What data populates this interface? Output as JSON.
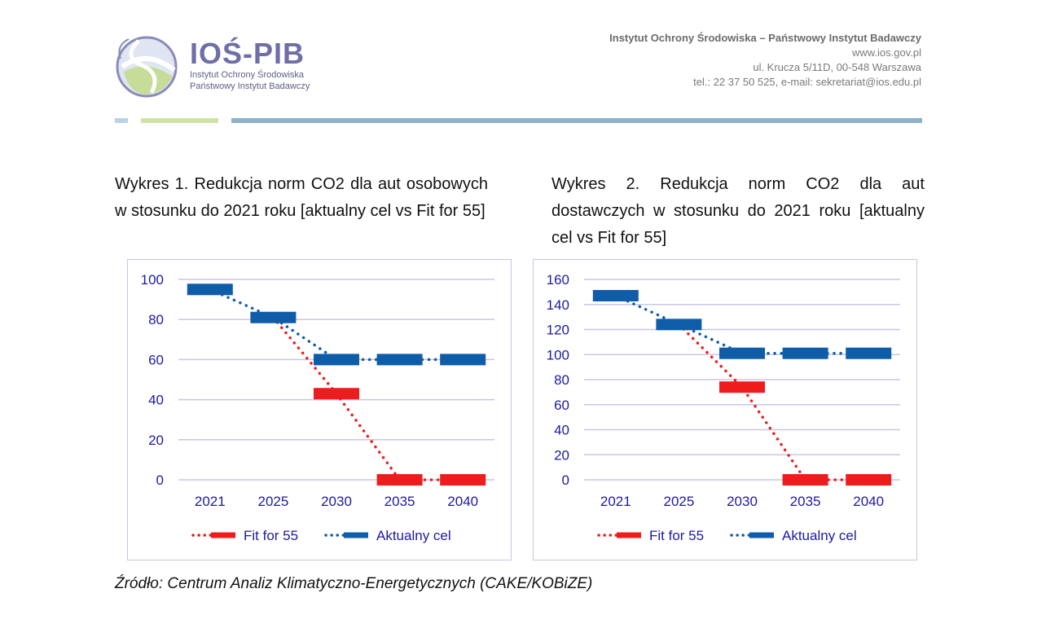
{
  "header": {
    "brand_name": "IOŚ-PIB",
    "brand_sub_1": "Instytut Ochrony Środowiska",
    "brand_sub_2": "Państwowy Instytut Badawczy",
    "contact_org": "Instytut Ochrony Środowiska – Państwowy Instytut Badawczy",
    "contact_web": "www.ios.gov.pl",
    "contact_addr": "ul. Krucza 5/11D, 00-548 Warszawa",
    "contact_tel": "tel.: 22 37 50 525, e-mail: sekretariat@ios.edu.pl"
  },
  "captions": {
    "chart1": "Wykres 1. Redukcja norm CO2 dla aut osobowych w stosunku do 2021 roku [aktualny cel vs Fit for 55]",
    "chart2": "Wykres 2. Redukcja norm CO2 dla aut dostawczych w stosunku do 2021 roku [aktualny cel vs Fit for 55]"
  },
  "source": "Źródło: Centrum Analiz Klimatyczno-Energetycznych (CAKE/KOBiZE)",
  "colors": {
    "fit55": "#ee1c1c",
    "aktualny": "#0f5ca8",
    "tick": "#1d1aa4",
    "grid": "#c9c6e6",
    "brand": "#6f6ea6"
  },
  "chart_data": [
    {
      "type": "line",
      "categories": [
        "2021",
        "2025",
        "2030",
        "2035",
        "2040"
      ],
      "ylim": [
        0,
        100
      ],
      "yticks": [
        0,
        20,
        40,
        60,
        80,
        100
      ],
      "series": [
        {
          "name": "Fit for 55",
          "values": [
            null,
            81,
            43,
            0,
            0
          ]
        },
        {
          "name": "Aktualny cel",
          "values": [
            95,
            81,
            60,
            60,
            60
          ]
        }
      ],
      "legend": "bottom",
      "grid": true
    },
    {
      "type": "line",
      "categories": [
        "2021",
        "2025",
        "2030",
        "2035",
        "2040"
      ],
      "ylim": [
        0,
        160
      ],
      "yticks": [
        0,
        20,
        40,
        60,
        80,
        100,
        120,
        140,
        160
      ],
      "series": [
        {
          "name": "Fit for 55",
          "values": [
            null,
            124,
            74,
            0,
            0
          ]
        },
        {
          "name": "Aktualny cel",
          "values": [
            147,
            124,
            101,
            101,
            101
          ]
        }
      ],
      "legend": "bottom",
      "grid": true
    }
  ]
}
